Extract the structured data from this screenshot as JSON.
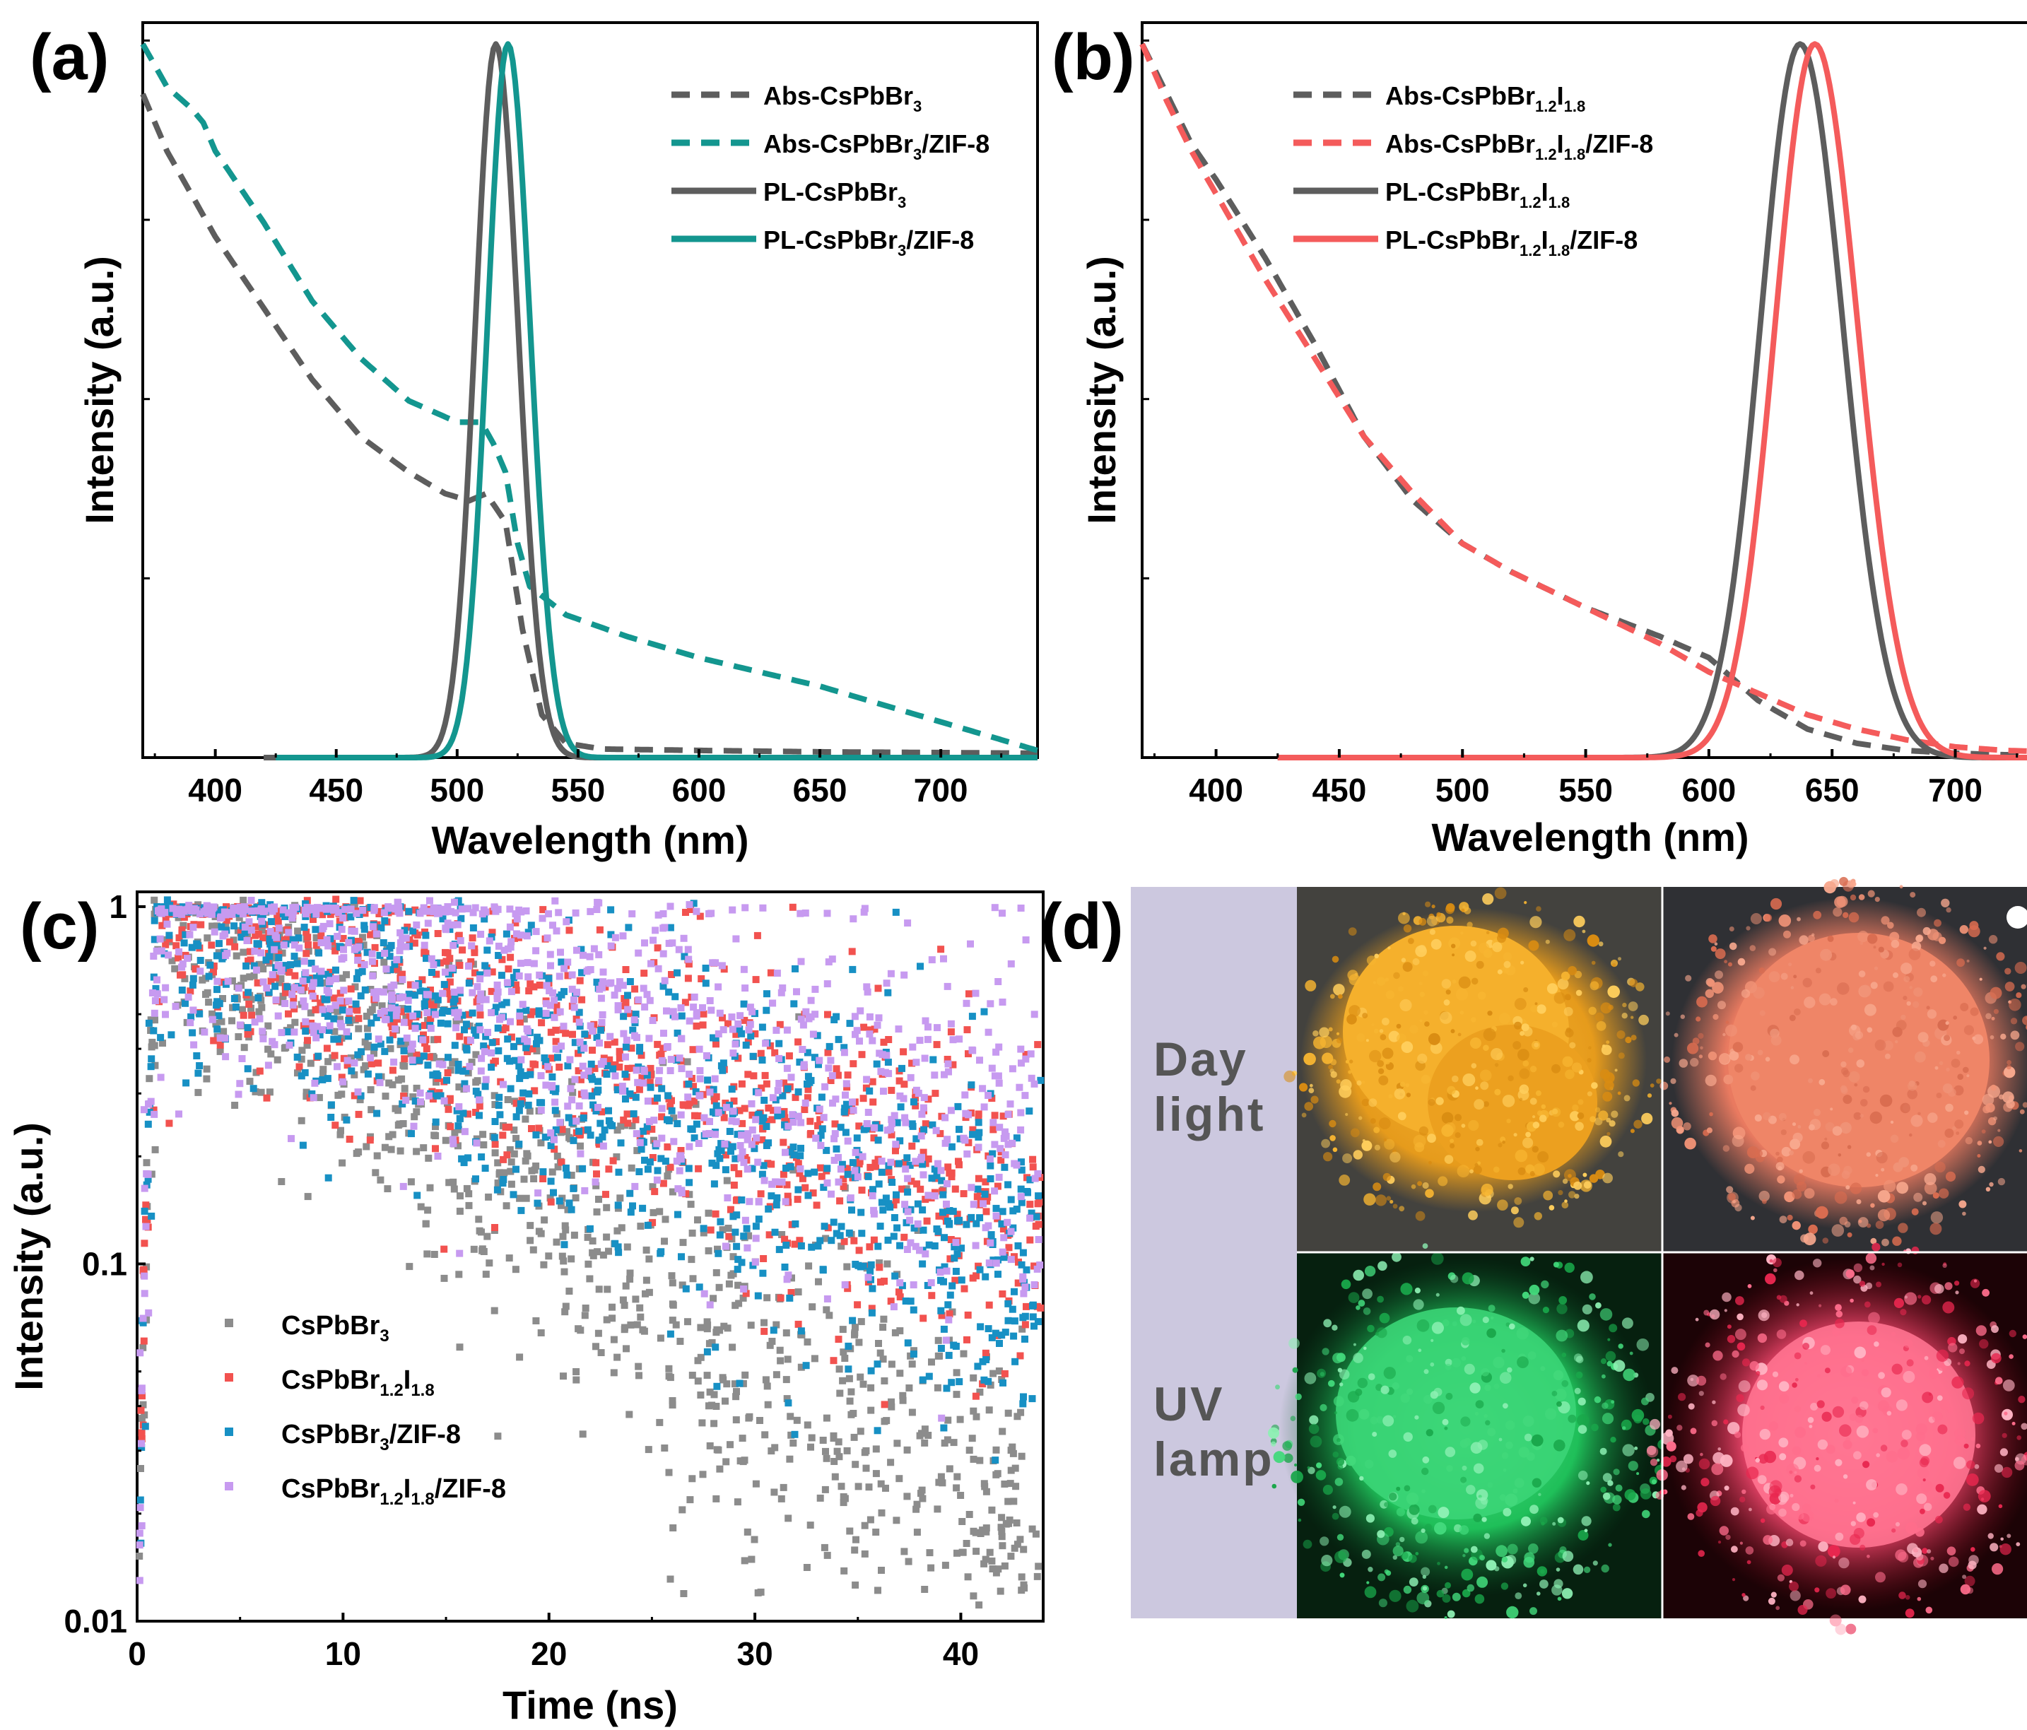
{
  "colors": {
    "gray": "#5d5d5d",
    "teal": "#13968f",
    "red": "#f45b5b",
    "scatter_gray": "#8c8c8c",
    "scatter_red": "#f2524f",
    "scatter_blue": "#1790c4",
    "scatter_purple": "#c79af0",
    "panel_d_strip": "#ccc8df",
    "photo_orange": "#f0a623",
    "photo_salmon": "#ee8266",
    "photo_green": "#1fbf59",
    "photo_pink": "#f54a71"
  },
  "chart_data": [
    {
      "panel": "a",
      "label": "(a)",
      "type": "line",
      "xlabel": "Wavelength (nm)",
      "ylabel": "Intensity (a.u.)",
      "xlim": [
        370,
        740
      ],
      "ylim": [
        0,
        1.03
      ],
      "xticks": [
        400,
        450,
        500,
        550,
        600,
        650,
        700
      ],
      "xtick_labels": [
        "400",
        "450",
        "500",
        "550",
        "600",
        "650",
        "700"
      ],
      "legend_position": "top-right",
      "series": [
        {
          "name": "Abs-CsPbBr3",
          "legend_text": [
            "Abs-CsPbBr",
            "3",
            ""
          ],
          "color": "gray",
          "dash": true,
          "x": [
            370,
            380,
            390,
            400,
            420,
            440,
            460,
            480,
            495,
            505,
            512,
            520,
            527,
            535,
            545,
            560,
            600,
            650,
            700,
            740
          ],
          "y": [
            0.93,
            0.85,
            0.79,
            0.73,
            0.63,
            0.53,
            0.45,
            0.4,
            0.37,
            0.36,
            0.37,
            0.33,
            0.18,
            0.06,
            0.02,
            0.012,
            0.01,
            0.008,
            0.007,
            0.006
          ]
        },
        {
          "name": "Abs-CsPbBr3/ZIF-8",
          "legend_text": [
            "Abs-CsPbBr",
            "3",
            "/ZIF-8"
          ],
          "color": "teal",
          "dash": true,
          "x": [
            370,
            380,
            390,
            395,
            400,
            420,
            440,
            460,
            480,
            500,
            510,
            515,
            520,
            525,
            530,
            545,
            570,
            600,
            650,
            700,
            740
          ],
          "y": [
            1.0,
            0.94,
            0.91,
            0.89,
            0.85,
            0.75,
            0.64,
            0.56,
            0.5,
            0.47,
            0.47,
            0.44,
            0.4,
            0.3,
            0.24,
            0.2,
            0.17,
            0.14,
            0.1,
            0.05,
            0.01
          ]
        },
        {
          "name": "PL-CsPbBr3",
          "legend_text": [
            "PL-CsPbBr",
            "3",
            ""
          ],
          "color": "gray",
          "dash": false,
          "peak": 516,
          "fwhm": 20,
          "start": 420
        },
        {
          "name": "PL-CsPbBr3/ZIF-8",
          "legend_text": [
            "PL-CsPbBr",
            "3",
            "/ZIF-8"
          ],
          "color": "teal",
          "dash": false,
          "peak": 521,
          "fwhm": 20,
          "start": 425
        }
      ]
    },
    {
      "panel": "b",
      "label": "(b)",
      "type": "line",
      "xlabel": "Wavelength (nm)",
      "ylabel": "Intensity (a.u.)",
      "xlim": [
        370,
        740
      ],
      "ylim": [
        0,
        1.03
      ],
      "xticks": [
        400,
        450,
        500,
        550,
        600,
        650,
        700
      ],
      "xtick_labels": [
        "400",
        "450",
        "500",
        "550",
        "600",
        "650",
        "700"
      ],
      "legend_position": "top-left",
      "series": [
        {
          "name": "Abs-CsPbBr1.2I1.8",
          "legend_text": [
            "Abs-CsPbBr",
            "1.2",
            "I",
            "1.8",
            ""
          ],
          "color": "gray",
          "dash": true,
          "x": [
            370,
            380,
            390,
            400,
            420,
            440,
            460,
            480,
            500,
            520,
            550,
            580,
            600,
            620,
            640,
            660,
            680,
            700,
            720,
            740
          ],
          "y": [
            1.0,
            0.93,
            0.86,
            0.81,
            0.7,
            0.58,
            0.45,
            0.36,
            0.3,
            0.26,
            0.21,
            0.17,
            0.14,
            0.08,
            0.04,
            0.02,
            0.01,
            0.006,
            0.004,
            0.003
          ]
        },
        {
          "name": "Abs-CsPbBr1.2I1.8/ZIF-8",
          "legend_text": [
            "Abs-CsPbBr",
            "1.2",
            "I",
            "1.8",
            "/ZIF-8"
          ],
          "color": "red",
          "dash": true,
          "x": [
            370,
            380,
            390,
            400,
            420,
            440,
            460,
            480,
            500,
            520,
            550,
            580,
            600,
            620,
            640,
            660,
            680,
            700,
            720,
            740
          ],
          "y": [
            1.0,
            0.92,
            0.85,
            0.79,
            0.67,
            0.56,
            0.45,
            0.37,
            0.3,
            0.26,
            0.21,
            0.16,
            0.12,
            0.09,
            0.06,
            0.04,
            0.025,
            0.015,
            0.01,
            0.008
          ]
        },
        {
          "name": "PL-CsPbBr1.2I1.8",
          "legend_text": [
            "PL-CsPbBr",
            "1.2",
            "I",
            "1.8",
            ""
          ],
          "color": "gray",
          "dash": false,
          "peak": 637,
          "fwhm": 38,
          "start": 425
        },
        {
          "name": "PL-CsPbBr1.2I1.8/ZIF-8",
          "legend_text": [
            "PL-CsPbBr",
            "1.2",
            "I",
            "1.8",
            "/ZIF-8"
          ],
          "color": "red",
          "dash": false,
          "peak": 643,
          "fwhm": 38,
          "start": 425
        }
      ]
    },
    {
      "panel": "c",
      "label": "(c)",
      "type": "scatter",
      "xlabel": "Time (ns)",
      "ylabel": "Intensity (a.u.)",
      "xlim": [
        0,
        44
      ],
      "ylim": [
        0.01,
        1.1
      ],
      "yscale": "log",
      "xticks": [
        0,
        10,
        20,
        30,
        40
      ],
      "xtick_labels": [
        "0",
        "10",
        "20",
        "30",
        "40"
      ],
      "yticks": [
        0.01,
        0.1,
        1
      ],
      "ytick_labels": [
        "0.01",
        "0.1",
        "1"
      ],
      "legend_position": "bottom-left",
      "series": [
        {
          "name": "CsPbBr3",
          "legend_text": [
            "CsPbBr",
            "3",
            ""
          ],
          "color": "scatter_gray",
          "rise_ns": 1.1,
          "decay_ns": 9.5,
          "noise": 0.22,
          "floor": 0.006,
          "count": 1000
        },
        {
          "name": "CsPbBr1.2I1.8",
          "legend_text": [
            "CsPbBr",
            "1.2",
            "I",
            "1.8",
            ""
          ],
          "color": "scatter_red",
          "rise_ns": 1.1,
          "decay_ns": 21,
          "noise": 0.18,
          "floor": 0.004,
          "count": 900
        },
        {
          "name": "CsPbBr3/ZIF-8",
          "legend_text": [
            "CsPbBr",
            "3",
            "/ZIF-8"
          ],
          "color": "scatter_blue",
          "rise_ns": 1.1,
          "decay_ns": 18,
          "noise": 0.2,
          "floor": 0.004,
          "count": 1000
        },
        {
          "name": "CsPbBr1.2I1.8/ZIF-8",
          "legend_text": [
            "CsPbBr",
            "1.2",
            "I",
            "1.8",
            "/ZIF-8"
          ],
          "color": "scatter_purple",
          "rise_ns": 1.1,
          "decay_ns": 28,
          "noise": 0.22,
          "floor": 0.004,
          "count": 1000
        }
      ]
    }
  ],
  "panel_d": {
    "label": "(d)",
    "rows": [
      {
        "lines": [
          "Day",
          "light"
        ]
      },
      {
        "lines": [
          "UV",
          "lamp"
        ]
      }
    ],
    "photos": [
      {
        "name": "daylight-csbr",
        "bg": "#3a3a36",
        "powder": "photo_orange"
      },
      {
        "name": "daylight-csbri",
        "bg": "#2f3034",
        "powder": "photo_salmon"
      },
      {
        "name": "uv-csbr",
        "bg": "#06200f",
        "powder": "photo_green"
      },
      {
        "name": "uv-csbri",
        "bg": "#1c0306",
        "powder": "photo_pink"
      }
    ]
  }
}
